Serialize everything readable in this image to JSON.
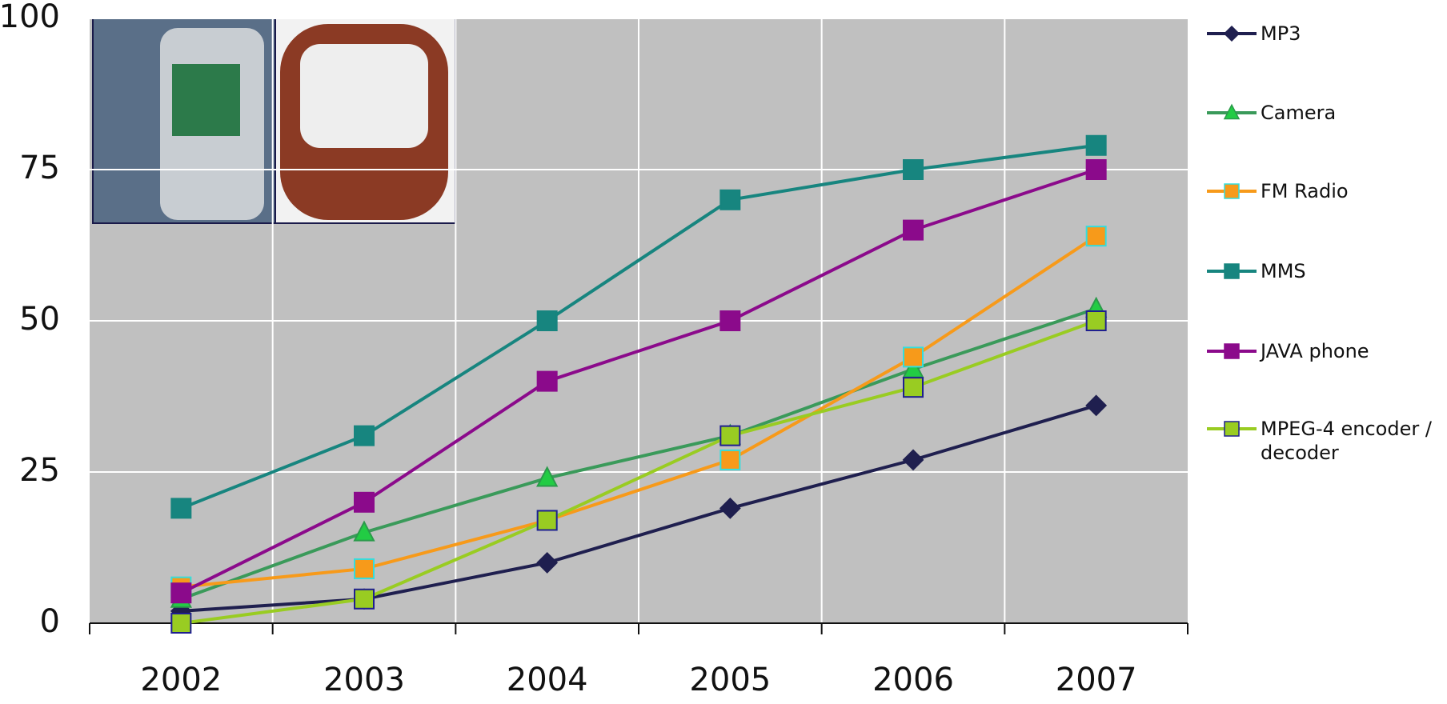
{
  "chart_data": {
    "type": "line",
    "categories": [
      "2002",
      "2003",
      "2004",
      "2005",
      "2006",
      "2007"
    ],
    "ylim": [
      0,
      100
    ],
    "yticks": [
      0,
      25,
      50,
      75,
      100
    ],
    "grid": true,
    "legend": "right",
    "series": [
      {
        "name": "MP3",
        "color": "#1f1f4f",
        "marker": "diamond",
        "marker_color": "#1f1f4f",
        "marker_edge": "#1f1f4f",
        "values": [
          2,
          4,
          10,
          19,
          27,
          36
        ]
      },
      {
        "name": "Camera",
        "color": "#3a9a5a",
        "marker": "triangle",
        "marker_color": "#22cc44",
        "marker_edge": "#2a9a4a",
        "values": [
          4,
          15,
          24,
          31,
          42,
          52
        ]
      },
      {
        "name": "FM Radio",
        "color": "#f79a1a",
        "marker": "square",
        "marker_color": "#f79a1a",
        "marker_edge": "#33dddd",
        "values": [
          6,
          9,
          17,
          27,
          44,
          64
        ]
      },
      {
        "name": "MMS",
        "color": "#17857f",
        "marker": "square",
        "marker_color": "#17857f",
        "marker_edge": "#17857f",
        "values": [
          19,
          31,
          50,
          70,
          75,
          79
        ]
      },
      {
        "name": "JAVA phone",
        "color": "#8b0a8b",
        "marker": "square",
        "marker_color": "#8b0a8b",
        "marker_edge": "#8b0a8b",
        "values": [
          5,
          20,
          40,
          50,
          65,
          75
        ]
      },
      {
        "name": "MPEG-4 encoder / decoder",
        "color": "#99cc22",
        "marker": "square",
        "marker_color": "#99cc22",
        "marker_edge": "#1f1f8f",
        "values": [
          0,
          4,
          17,
          31,
          39,
          50
        ]
      }
    ]
  }
}
